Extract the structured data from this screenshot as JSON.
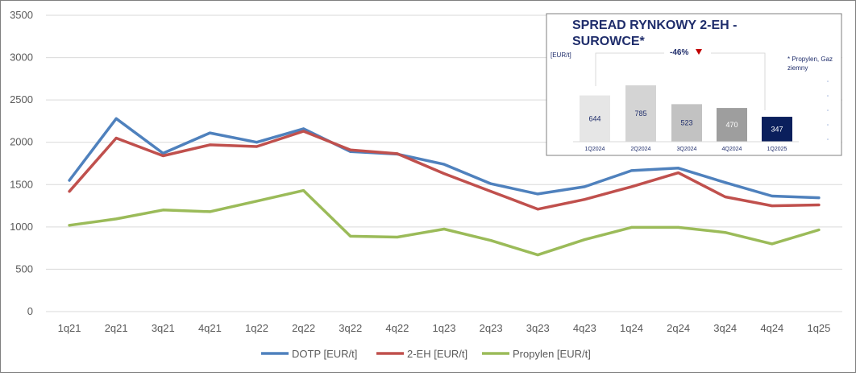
{
  "chart_data": [
    {
      "type": "line",
      "categories": [
        "1q21",
        "2q21",
        "3q21",
        "4q21",
        "1q22",
        "2q22",
        "3q22",
        "4q22",
        "1q23",
        "2q23",
        "3q23",
        "4q23",
        "1q24",
        "2q24",
        "3q24",
        "4q24",
        "1q25"
      ],
      "yticks": [
        "0",
        "500",
        "1000",
        "1500",
        "2000",
        "2500",
        "3000",
        "3500"
      ],
      "ylim": [
        0,
        3500
      ],
      "grid": true,
      "legend_position": "bottom",
      "series": [
        {
          "name": "DOTP [EUR/t]",
          "color": "#4f81bd",
          "values": [
            1550,
            2280,
            1870,
            2110,
            2000,
            2160,
            1890,
            1860,
            1740,
            1510,
            1390,
            1475,
            1665,
            1695,
            1525,
            1365,
            1345
          ]
        },
        {
          "name": "2-EH [EUR/t]",
          "color": "#c0504d",
          "values": [
            1420,
            2050,
            1840,
            1970,
            1950,
            2130,
            1910,
            1865,
            1630,
            1420,
            1210,
            1325,
            1475,
            1640,
            1355,
            1250,
            1260
          ]
        },
        {
          "name": "Propylen [EUR/t]",
          "color": "#9bbb59",
          "values": [
            1020,
            1095,
            1200,
            1180,
            1305,
            1430,
            890,
            880,
            975,
            840,
            670,
            850,
            995,
            995,
            935,
            800,
            965
          ]
        }
      ]
    },
    {
      "type": "bar",
      "title": "SPREAD RYNKOWY 2-EH - SUROWCE*",
      "unit_label": "[EUR/t]",
      "change_label": "-46%",
      "footnote": "* Propylen, Gaz ziemny",
      "categories": [
        "1Q2024",
        "2Q2024",
        "3Q2024",
        "4Q2024",
        "1Q2025"
      ],
      "values": [
        644,
        785,
        523,
        470,
        347
      ],
      "value_labels": [
        "644",
        "785",
        "523",
        "470",
        "347"
      ],
      "bar_colors": [
        "#e6e6e6",
        "#d4d4d4",
        "#c2c2c2",
        "#9e9e9e",
        "#0a1f5c"
      ],
      "label_colors": [
        "#1f2d6b",
        "#1f2d6b",
        "#1f2d6b",
        "#ffffff",
        "#ffffff"
      ],
      "ylim": [
        0,
        785
      ]
    }
  ]
}
